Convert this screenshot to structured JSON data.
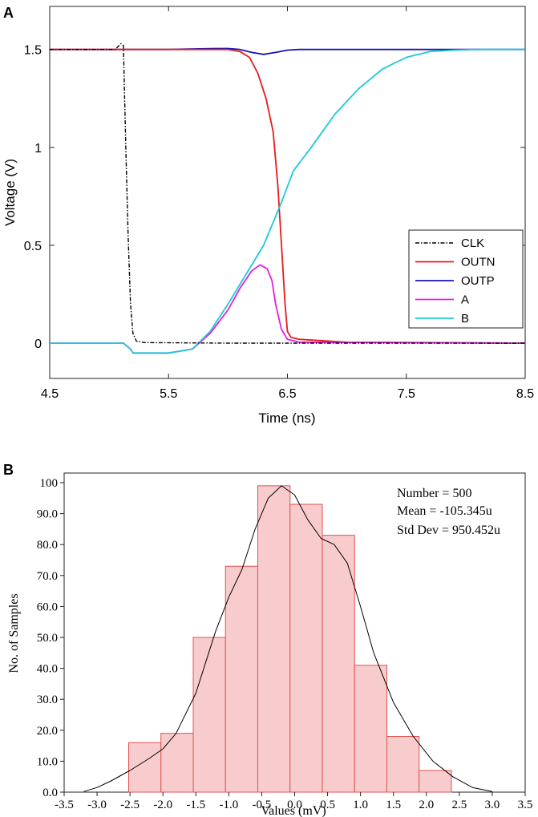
{
  "chart_data": [
    {
      "panel_label": "A",
      "type": "line",
      "xlabel": "Time (ns)",
      "ylabel": "Voltage (V)",
      "xlim": [
        4.5,
        8.5
      ],
      "ylim": [
        -0.18,
        1.72
      ],
      "xticks": [
        4.5,
        5.5,
        6.5,
        7.5,
        8.5
      ],
      "xtick_labels": [
        "4.5",
        "5.5",
        "6.5",
        "7.5",
        "8.5"
      ],
      "yticks": [
        0,
        0.5,
        1,
        1.5
      ],
      "ytick_labels": [
        "0",
        "0.5",
        "1",
        "1.5"
      ],
      "legend_position": "bottom-right",
      "series": [
        {
          "name": "CLK",
          "color": "#000000",
          "style": "dashdot",
          "points": [
            [
              4.5,
              1.5
            ],
            [
              5.05,
              1.5
            ],
            [
              5.1,
              1.53
            ],
            [
              5.12,
              1.52
            ],
            [
              5.14,
              1.0
            ],
            [
              5.16,
              0.55
            ],
            [
              5.18,
              0.2
            ],
            [
              5.2,
              0.05
            ],
            [
              5.23,
              0.01
            ],
            [
              5.3,
              0.003
            ],
            [
              6.0,
              0.0
            ],
            [
              8.5,
              0.0
            ]
          ]
        },
        {
          "name": "OUTN",
          "color": "#e8191c",
          "style": "solid",
          "points": [
            [
              4.5,
              1.5
            ],
            [
              6.0,
              1.5
            ],
            [
              6.1,
              1.49
            ],
            [
              6.18,
              1.46
            ],
            [
              6.25,
              1.38
            ],
            [
              6.32,
              1.25
            ],
            [
              6.38,
              1.08
            ],
            [
              6.42,
              0.8
            ],
            [
              6.45,
              0.5
            ],
            [
              6.48,
              0.2
            ],
            [
              6.5,
              0.06
            ],
            [
              6.53,
              0.03
            ],
            [
              6.6,
              0.02
            ],
            [
              7.0,
              0.005
            ],
            [
              8.5,
              0.0
            ]
          ]
        },
        {
          "name": "OUTP",
          "color": "#1515b4",
          "style": "solid",
          "points": [
            [
              4.5,
              1.5
            ],
            [
              5.5,
              1.5
            ],
            [
              5.9,
              1.505
            ],
            [
              6.0,
              1.505
            ],
            [
              6.1,
              1.5
            ],
            [
              6.2,
              1.485
            ],
            [
              6.3,
              1.475
            ],
            [
              6.4,
              1.485
            ],
            [
              6.5,
              1.497
            ],
            [
              6.6,
              1.5
            ],
            [
              8.5,
              1.5
            ]
          ]
        },
        {
          "name": "A",
          "color": "#e020e0",
          "style": "solid",
          "points": [
            [
              4.5,
              0.0
            ],
            [
              5.12,
              0.0
            ],
            [
              5.18,
              -0.03
            ],
            [
              5.2,
              -0.05
            ],
            [
              5.5,
              -0.05
            ],
            [
              5.7,
              -0.03
            ],
            [
              5.85,
              0.05
            ],
            [
              6.0,
              0.17
            ],
            [
              6.1,
              0.28
            ],
            [
              6.2,
              0.37
            ],
            [
              6.27,
              0.4
            ],
            [
              6.33,
              0.38
            ],
            [
              6.37,
              0.32
            ],
            [
              6.4,
              0.2
            ],
            [
              6.45,
              0.07
            ],
            [
              6.5,
              0.02
            ],
            [
              6.6,
              0.005
            ],
            [
              8.5,
              0.0
            ]
          ]
        },
        {
          "name": "B",
          "color": "#1ec8d8",
          "style": "solid",
          "points": [
            [
              4.5,
              0.0
            ],
            [
              5.12,
              0.0
            ],
            [
              5.18,
              -0.03
            ],
            [
              5.2,
              -0.05
            ],
            [
              5.5,
              -0.05
            ],
            [
              5.7,
              -0.03
            ],
            [
              5.85,
              0.06
            ],
            [
              6.0,
              0.2
            ],
            [
              6.2,
              0.4
            ],
            [
              6.3,
              0.5
            ],
            [
              6.45,
              0.72
            ],
            [
              6.55,
              0.88
            ],
            [
              6.7,
              1.0
            ],
            [
              6.9,
              1.17
            ],
            [
              7.1,
              1.3
            ],
            [
              7.3,
              1.4
            ],
            [
              7.5,
              1.46
            ],
            [
              7.7,
              1.49
            ],
            [
              7.9,
              1.497
            ],
            [
              8.1,
              1.5
            ],
            [
              8.5,
              1.5
            ]
          ]
        }
      ]
    },
    {
      "panel_label": "B",
      "type": "bar",
      "xlabel": "Values (mV)",
      "ylabel": "No. of Samples",
      "xlim": [
        -3.5,
        3.5
      ],
      "ylim": [
        0,
        100
      ],
      "xticks": [
        -3.5,
        -3.0,
        -2.5,
        -2.0,
        -1.5,
        -1.0,
        -0.5,
        0.0,
        0.5,
        1.0,
        1.5,
        2.0,
        2.5,
        3.0,
        3.5
      ],
      "xtick_labels": [
        "-3.5",
        "-3.0",
        "-2.5",
        "-2.0",
        "-1.5",
        "-1.0",
        "-0.5",
        "0.0",
        "0.5",
        "1.0",
        "1.5",
        "2.0",
        "2.5",
        "3.0",
        "3.5"
      ],
      "yticks": [
        0,
        10,
        20,
        30,
        40,
        50,
        60,
        70,
        80,
        90,
        100
      ],
      "ytick_labels": [
        "0.0",
        "10.0",
        "20.0",
        "30.0",
        "40.0",
        "50.0",
        "60.0",
        "70.0",
        "80.0",
        "90.0",
        "100"
      ],
      "bar_color": "#f8cccc",
      "bar_edge_color": "#e05050",
      "bin_edges": [
        -2.52,
        -2.03,
        -1.54,
        -1.05,
        -0.56,
        -0.07,
        0.42,
        0.91,
        1.4,
        1.89,
        2.38
      ],
      "values": [
        16,
        19,
        50,
        73,
        99,
        93,
        83,
        41,
        18,
        7
      ],
      "density_curve": {
        "color": "#000000",
        "points": [
          [
            -3.2,
            0.2
          ],
          [
            -3.0,
            1.5
          ],
          [
            -2.8,
            3.5
          ],
          [
            -2.5,
            7
          ],
          [
            -2.2,
            11
          ],
          [
            -2.0,
            14
          ],
          [
            -1.8,
            19
          ],
          [
            -1.5,
            32
          ],
          [
            -1.2,
            52
          ],
          [
            -1.0,
            63
          ],
          [
            -0.8,
            72
          ],
          [
            -0.6,
            85
          ],
          [
            -0.4,
            95
          ],
          [
            -0.2,
            99
          ],
          [
            0.0,
            96
          ],
          [
            0.2,
            88
          ],
          [
            0.4,
            82
          ],
          [
            0.6,
            80
          ],
          [
            0.8,
            74
          ],
          [
            1.0,
            60
          ],
          [
            1.2,
            45
          ],
          [
            1.5,
            29
          ],
          [
            1.8,
            18
          ],
          [
            2.1,
            10
          ],
          [
            2.4,
            5
          ],
          [
            2.7,
            1.5
          ],
          [
            3.0,
            0.2
          ]
        ]
      },
      "stats": [
        "Number = 500",
        "Mean = -105.345u",
        "Std Dev = 950.452u"
      ]
    }
  ]
}
